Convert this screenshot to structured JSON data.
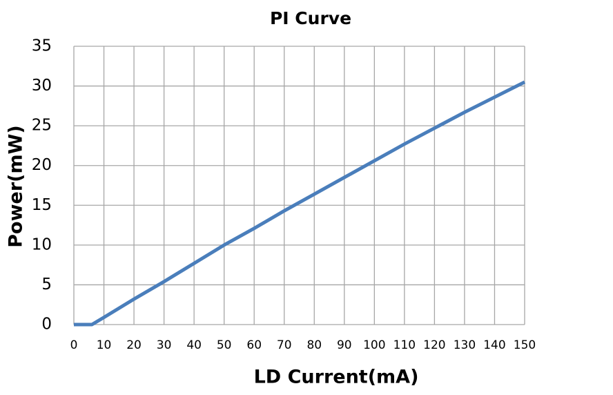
{
  "chart_data": {
    "type": "line",
    "title": "PI Curve",
    "x_label": "LD Current(mA)",
    "y_label": "Power(mW)",
    "x": [
      0,
      6,
      10,
      20,
      30,
      40,
      50,
      60,
      70,
      80,
      90,
      100,
      110,
      120,
      130,
      140,
      150
    ],
    "series": [
      {
        "name": "Power",
        "color": "#4a7ebb",
        "values": [
          0,
          0,
          0.9,
          3.2,
          5.4,
          7.7,
          10,
          12.1,
          14.3,
          16.4,
          18.5,
          20.6,
          22.7,
          24.7,
          26.7,
          28.6,
          30.5
        ]
      }
    ],
    "xlim": [
      0,
      150
    ],
    "xticks": [
      0,
      10,
      20,
      30,
      40,
      50,
      60,
      70,
      80,
      90,
      100,
      110,
      120,
      130,
      140,
      150
    ],
    "ylim": [
      0,
      35
    ],
    "yticks": [
      0,
      5,
      10,
      15,
      20,
      25,
      30,
      35
    ],
    "grid": true
  }
}
